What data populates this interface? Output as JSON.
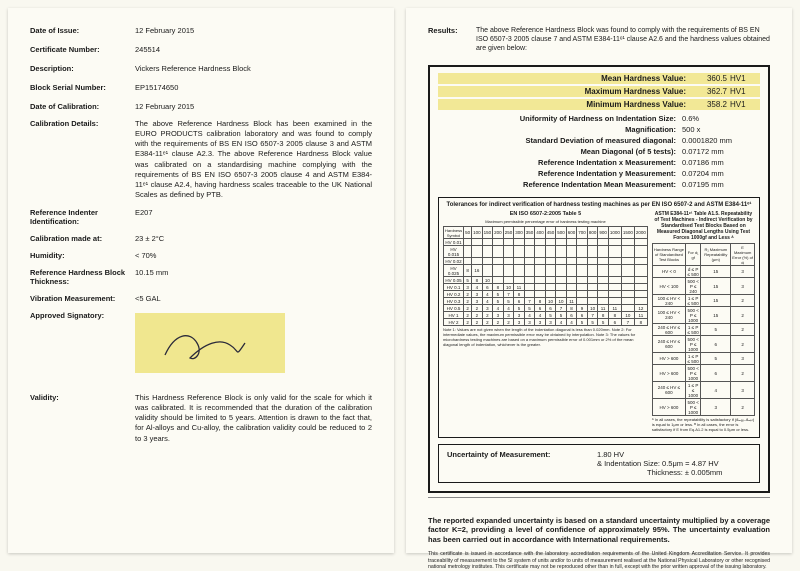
{
  "left": {
    "fields": [
      {
        "label": "Date of Issue:",
        "value": "12 February 2015"
      },
      {
        "label": "Certificate Number:",
        "value": "245514"
      },
      {
        "label": "Description:",
        "value": "Vickers Reference Hardness Block"
      },
      {
        "label": "Block Serial Number:",
        "value": "EP15174650"
      },
      {
        "label": "Date of Calibration:",
        "value": "12 February 2015"
      }
    ],
    "calibDetailsLabel": "Calibration Details:",
    "calibDetails": "The above Reference Hardness Block has been examined in the EURO PRODUCTS calibration laboratory and was found to comply with the requirements of BS EN ISO 6507-3 2005 clause 3 and ASTM E384-11ᵉ¹ clause A2.3. The above Reference Hardness Block value was calibrated on a standardising machine complying with the requirements of BS EN ISO 6507-3 2005 clause 4 and ASTM E384-11ᵉ¹ clause A2.4, having hardness scales traceable to the UK National Scales as defined by PTB.",
    "fields2": [
      {
        "label": "Reference Indenter Identification:",
        "value": "E207"
      },
      {
        "label": "Calibration made at:",
        "value": "23 ± 2°C"
      },
      {
        "label": "Humidity:",
        "value": "< 70%"
      },
      {
        "label": "Reference Hardness Block Thickness:",
        "value": "10.15 mm"
      },
      {
        "label": "Vibration Measurement:",
        "value": "<5 GAL"
      }
    ],
    "approvedLabel": "Approved Signatory:",
    "validityLabel": "Validity:",
    "validity": "This Hardness Reference Block is only valid for the scale for which it was calibrated. It is recommended that the duration of the calibration validity should be limited to 5 years. Attention is drawn to the fact that, for Al-alloys and Cu-alloy, the calibration validity could be reduced to 2 to 3 years."
  },
  "right": {
    "resultsLabel": "Results:",
    "resultsTop": "The above Reference Hardness Block was found to comply with the requirements of BS EN ISO 6507-3 2005 clause 7 and ASTM E384-11ᵉ¹ clause A2.6 and the hardness values obtained are given below:",
    "hv": [
      {
        "label": "Mean Hardness Value:",
        "val": "360.5",
        "unit": "HV1",
        "hl": true
      },
      {
        "label": "Maximum Hardness Value:",
        "val": "362.7",
        "unit": "HV1",
        "hl": true
      },
      {
        "label": "Minimum Hardness Value:",
        "val": "358.2",
        "unit": "HV1",
        "hl": true
      }
    ],
    "params": [
      {
        "label": "Uniformity of Hardness on Indentation Size:",
        "val": "0.6%"
      },
      {
        "label": "Magnification:",
        "val": "500 x"
      },
      {
        "label": "Standard Deviation of measured diagonal:",
        "val": "0.0001820 mm"
      },
      {
        "label": "Mean Diagonal (of 5 tests):",
        "val": "0.07172 mm"
      },
      {
        "label": "Reference Indentation x Measurement:",
        "val": "0.07186 mm"
      },
      {
        "label": "Reference Indentation y Measurement:",
        "val": "0.07204 mm"
      },
      {
        "label": "Reference Indentation Mean Measurement:",
        "val": "0.07195 mm"
      }
    ],
    "tolTitle": "Tolerances for indirect verification of hardness testing machines as per EN ISO 6507-2 and ASTM E384-11ᵉ¹",
    "tolLeftTitle": "EN ISO 6507-2:2005 Table 5",
    "tolLeftSub": "Maximum permissible percentage error of hardness testing machine",
    "tolRightTitle": "ASTM E384-11ᵉ¹ Table A1.5. Repeatability of Test Machines - Indirect Verification by Standardised Test Blocks Based on Measured Diagonal Lengths Using Test Forces 1000gf and Less ᴬ",
    "leftTable": {
      "colhead": [
        "Hardness Symbol",
        "50",
        "100",
        "150",
        "200",
        "250",
        "300",
        "350",
        "400",
        "450",
        "500",
        "600",
        "700",
        "800",
        "900",
        "1000",
        "1500",
        "2000"
      ],
      "rows": [
        [
          "HV 0.01",
          "",
          ""
        ],
        [
          "HV 0.015",
          "",
          ""
        ],
        [
          "HV 0.02",
          "",
          ""
        ],
        [
          "HV 0.025",
          "8",
          "16"
        ],
        [
          "HV 0.05",
          "5",
          "8",
          "10",
          "",
          "",
          "",
          "",
          "",
          "",
          "",
          "",
          "",
          "",
          "",
          "",
          "",
          ""
        ],
        [
          "HV 0.1",
          "3",
          "4",
          "6",
          "8",
          "10",
          "11",
          "",
          "",
          "",
          "",
          "",
          "",
          "",
          "",
          "",
          "",
          ""
        ],
        [
          "HV 0.2",
          "2",
          "3",
          "4",
          "5",
          "7",
          "8",
          "",
          "",
          "",
          "",
          "",
          "",
          "",
          "",
          "",
          "",
          ""
        ],
        [
          "HV 0.3",
          "2",
          "3",
          "4",
          "5",
          "5",
          "6",
          "7",
          "8",
          "10",
          "10",
          "11",
          "",
          "",
          "",
          "",
          "",
          ""
        ],
        [
          "HV 0.5",
          "2",
          "2",
          "3",
          "4",
          "4",
          "5",
          "5",
          "6",
          "6",
          "7",
          "8",
          "9",
          "10",
          "11",
          "11",
          "",
          "12"
        ],
        [
          "HV 1",
          "2",
          "2",
          "2",
          "3",
          "3",
          "3",
          "4",
          "4",
          "5",
          "5",
          "6",
          "6",
          "7",
          "8",
          "8",
          "10",
          "11"
        ],
        [
          "HV 2",
          "2",
          "2",
          "2",
          "2",
          "2",
          "3",
          "3",
          "3",
          "3",
          "4",
          "4",
          "5",
          "5",
          "5",
          "6",
          "7",
          "8"
        ]
      ],
      "notes": "Note 1: Values are not given when the length of the indentation diagonal is less than 0.020mm.\nNote 2: For intermediate values, the maximum permissible error may be obtained by interpolation.\nNote 3: The values for microhardness testing machines are based on a maximum permissible error of 0.001mm or 2% of the mean diagonal length of indentation, whichever is the greater."
    },
    "rightTable": {
      "colhead": [
        "Hardness Range of Standardised Test Blocks",
        "For d₁ gf",
        "R₁ Maximum Repeatability (μm)",
        "E Maximum Error (%) of dᵢ"
      ],
      "rows": [
        [
          "HV < 0",
          "d ≤ P ≤ 500",
          "15",
          "3"
        ],
        [
          "HV < 100",
          "500 < P ≤ 240",
          "15",
          "3"
        ],
        [
          "100 ≤ HV < 240",
          "1 ≤ P ≤ 500",
          "15",
          "2"
        ],
        [
          "100 ≤ HV < 240",
          "500 < P ≤ 1000",
          "15",
          "2"
        ],
        [
          "240 ≤ HV ≤ 600",
          "1 ≤ P ≤ 500",
          "5",
          "2"
        ],
        [
          "240 ≤ HV ≤ 600",
          "500 < P ≤ 1000",
          "6",
          "2"
        ],
        [
          "HV > 600",
          "1 ≤ P ≤ 500",
          "5",
          "3"
        ],
        [
          "HV > 600",
          "500 < P ≤ 1000",
          "6",
          "2"
        ],
        [
          "240 ≤ HV ≤ 600",
          "1 ≤ P ≤ 1000",
          "4",
          "3"
        ],
        [
          "HV > 600",
          "500 < P ≤ 1000",
          "3",
          "2"
        ]
      ],
      "notes": "ᴬ In all cases, the repeatability is satisfactory if (d̄ₘₐₓ–d̄ₘᵢₙ) is equal to 1μm or less.\nᴮ In all cases, the error is satisfactory if E from Eq.A1.2 is equal to 0.5μm or less."
    },
    "uncertLabel": "Uncertainty of Measurement:",
    "uncert1": "1.80 HV",
    "uncert2": "& Indentation Size: 0.5μm = 4.87 HV",
    "uncert3": "Thickness: ± 0.005mm",
    "footerBold": "The reported expanded uncertainty is based on a standard uncertainty multiplied by a coverage factor K=2, providing a level of confidence of approximately 95%. The uncertainty evaluation has been carried out in accordance with International requirements.",
    "footerSmall": "This certificate is issued in accordance with the laboratory accreditation requirements of the United Kingdom Accreditation Service. It provides traceability of measurement to the SI system of units and/or to units of measurement realised at the National Physical Laboratory or other recognised national metrology institutes. This certificate may not be reproduced other than in full, except with the prior written approval of the issuing laboratory."
  }
}
